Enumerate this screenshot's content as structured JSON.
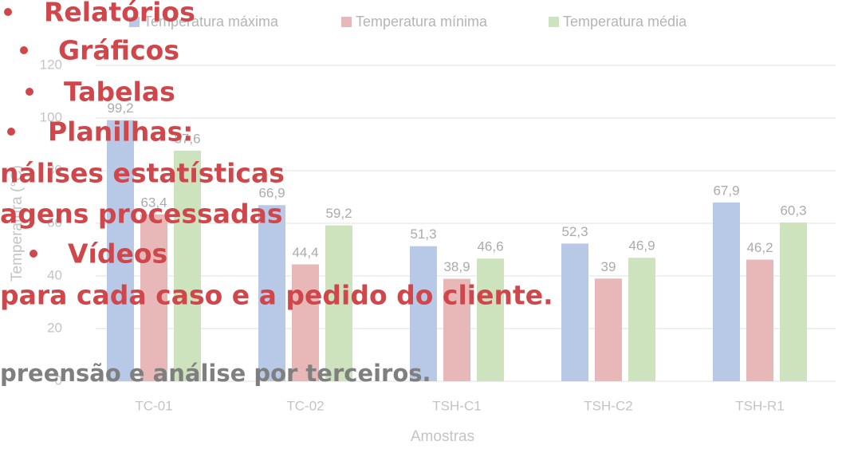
{
  "chart_data": {
    "type": "bar",
    "categories": [
      "TC-01",
      "TC-02",
      "TSH-C1",
      "TSH-C2",
      "TSH-R1"
    ],
    "series": [
      {
        "name": "Temperatura máxima",
        "color": "#b7c9e6",
        "values": [
          99.2,
          66.9,
          51.3,
          52.3,
          67.9
        ],
        "value_labels": [
          "99,2",
          "66,9",
          "51,3",
          "52,3",
          "67,9"
        ]
      },
      {
        "name": "Temperatura mínima",
        "color": "#e8b7b7",
        "values": [
          63.4,
          44.4,
          38.9,
          39,
          46.2
        ],
        "value_labels": [
          "63,4",
          "44,4",
          "38,9",
          "39",
          "46,2"
        ]
      },
      {
        "name": "Temperatura média",
        "color": "#cde3bd",
        "values": [
          87.6,
          59.2,
          46.6,
          46.9,
          60.3
        ],
        "value_labels": [
          "87,6",
          "59,2",
          "46,6",
          "46,9",
          "60,3"
        ]
      }
    ],
    "ylim": [
      0,
      120
    ],
    "yticks": [
      0,
      20,
      40,
      60,
      80,
      100,
      120
    ],
    "grid": true,
    "xlabel": "Amostras",
    "ylabel": "Temperatura (°C)",
    "legend": "top"
  },
  "overlay": {
    "items": [
      "Relatórios",
      "Gráficos",
      "Tabelas",
      "Planilhas:",
      "nálises estatísticas",
      "agens processadas",
      "Vídeos",
      "para cada caso e a pedido do cliente."
    ],
    "footer": "preensão e análise por terceiros."
  }
}
